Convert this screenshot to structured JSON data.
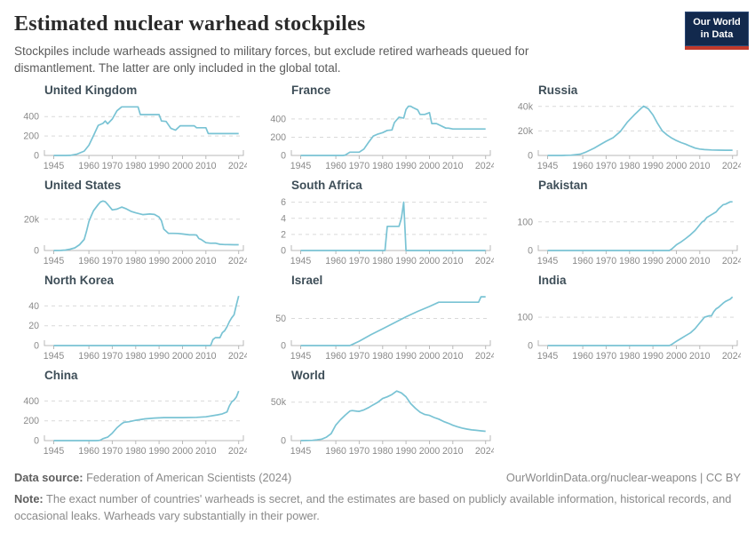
{
  "header": {
    "title": "Estimated nuclear warhead stockpiles",
    "subtitle": "Stockpiles include warheads assigned to military forces, but exclude retired warheads queued for dismantlement. The latter are only included in the global total.",
    "logo": {
      "line1": "Our World",
      "line2": "in Data"
    }
  },
  "colors": {
    "line": "#79c3d4",
    "grid": "#d9d9d9",
    "axis": "#b9b9b9",
    "tick_text": "#8a8a8a",
    "panel_title": "#3e4e58",
    "logo_bg": "#12294d",
    "logo_red": "#c0392b"
  },
  "axis": {
    "xlim": [
      1941,
      2026
    ],
    "xticks": [
      1945,
      1960,
      1970,
      1980,
      1990,
      2000,
      2010,
      2024
    ],
    "xtick_labels": [
      "1945",
      "1960",
      "1970",
      "1980",
      "1990",
      "2000",
      "2010",
      "2024"
    ]
  },
  "chart_data": [
    {
      "type": "line",
      "title": "United Kingdom",
      "ylim": [
        0,
        530
      ],
      "yticks": [
        0,
        200,
        400
      ],
      "ytick_labels": [
        "0",
        "200",
        "400"
      ],
      "x": [
        1945,
        1950,
        1952,
        1955,
        1958,
        1960,
        1962,
        1964,
        1966,
        1967,
        1968,
        1970,
        1972,
        1974,
        1981,
        1982,
        1990,
        1991,
        1993,
        1995,
        1997,
        1999,
        2001,
        2005,
        2006,
        2010,
        2011,
        2015,
        2024
      ],
      "y": [
        0,
        0,
        1,
        15,
        45,
        105,
        205,
        310,
        330,
        355,
        325,
        375,
        460,
        500,
        500,
        420,
        420,
        355,
        350,
        280,
        260,
        305,
        305,
        305,
        285,
        285,
        225,
        225,
        225
      ]
    },
    {
      "type": "line",
      "title": "France",
      "ylim": [
        0,
        565
      ],
      "yticks": [
        0,
        200,
        400
      ],
      "ytick_labels": [
        "0",
        "200",
        "400"
      ],
      "x": [
        1945,
        1963,
        1964,
        1966,
        1970,
        1972,
        1974,
        1976,
        1978,
        1980,
        1982,
        1984,
        1985,
        1987,
        1989,
        1990,
        1991,
        1992,
        1993,
        1995,
        1996,
        1998,
        2000,
        2001,
        2003,
        2007,
        2008,
        2010,
        2015,
        2020,
        2024
      ],
      "y": [
        0,
        0,
        4,
        36,
        36,
        70,
        145,
        212,
        235,
        250,
        275,
        280,
        360,
        420,
        410,
        505,
        540,
        540,
        525,
        500,
        450,
        450,
        470,
        350,
        350,
        300,
        300,
        290,
        290,
        290,
        290
      ]
    },
    {
      "type": "line",
      "title": "Russia",
      "ylim": [
        0,
        42000
      ],
      "yticks": [
        0,
        20000,
        40000
      ],
      "ytick_labels": [
        "0",
        "20k",
        "40k"
      ],
      "x": [
        1945,
        1949,
        1951,
        1953,
        1955,
        1957,
        1959,
        1961,
        1963,
        1965,
        1967,
        1970,
        1973,
        1976,
        1979,
        1982,
        1985,
        1986,
        1988,
        1990,
        1992,
        1994,
        1996,
        1998,
        2000,
        2002,
        2004,
        2006,
        2008,
        2010,
        2012,
        2015,
        2018,
        2021,
        2024
      ],
      "y": [
        0,
        1,
        25,
        120,
        200,
        660,
        1100,
        2450,
        4300,
        6100,
        8300,
        11600,
        14500,
        19400,
        27000,
        33000,
        38500,
        40200,
        38000,
        33000,
        26000,
        20000,
        16800,
        14200,
        12200,
        10500,
        9200,
        7500,
        6000,
        5200,
        4750,
        4500,
        4350,
        4300,
        4300
      ]
    },
    {
      "type": "line",
      "title": "United States",
      "ylim": [
        0,
        33000
      ],
      "yticks": [
        0,
        20000
      ],
      "ytick_labels": [
        "0",
        "20k"
      ],
      "x": [
        1945,
        1948,
        1950,
        1952,
        1954,
        1956,
        1958,
        1959,
        1960,
        1961,
        1962,
        1964,
        1965,
        1966,
        1967,
        1968,
        1970,
        1972,
        1974,
        1976,
        1978,
        1980,
        1983,
        1986,
        1988,
        1990,
        1991,
        1992,
        1994,
        1996,
        1998,
        2000,
        2003,
        2005,
        2006,
        2007,
        2008,
        2010,
        2012,
        2014,
        2016,
        2018,
        2020,
        2022,
        2024
      ],
      "y": [
        2,
        50,
        300,
        840,
        1700,
        3700,
        7100,
        12300,
        18600,
        22200,
        25500,
        29500,
        31100,
        31700,
        31250,
        29600,
        26000,
        26500,
        27800,
        26700,
        25100,
        24100,
        23000,
        23400,
        23100,
        21400,
        19000,
        13700,
        11000,
        11000,
        10900,
        10600,
        10000,
        10000,
        9900,
        7700,
        7000,
        5000,
        4650,
        4700,
        4000,
        3800,
        3750,
        3700,
        3700
      ]
    },
    {
      "type": "line",
      "title": "South Africa",
      "ylim": [
        0,
        6.4
      ],
      "yticks": [
        0,
        2,
        4,
        6
      ],
      "ytick_labels": [
        "0",
        "2",
        "4",
        "6"
      ],
      "x": [
        1945,
        1981,
        1982,
        1986,
        1987,
        1988,
        1989,
        1990,
        2000,
        2010,
        2024
      ],
      "y": [
        0,
        0,
        3,
        3,
        3,
        4,
        6,
        0,
        0,
        0,
        0
      ]
    },
    {
      "type": "line",
      "title": "Pakistan",
      "ylim": [
        0,
        180
      ],
      "yticks": [
        0,
        100
      ],
      "ytick_labels": [
        "0",
        "100"
      ],
      "x": [
        1945,
        1997,
        1998,
        2000,
        2002,
        2004,
        2006,
        2008,
        2010,
        2011,
        2012,
        2013,
        2015,
        2017,
        2018,
        2020,
        2021,
        2023,
        2024
      ],
      "y": [
        0,
        0,
        5,
        20,
        30,
        42,
        55,
        70,
        90,
        100,
        105,
        115,
        125,
        135,
        145,
        160,
        162,
        170,
        170
      ]
    },
    {
      "type": "line",
      "title": "North Korea",
      "ylim": [
        0,
        52
      ],
      "yticks": [
        0,
        20,
        40
      ],
      "ytick_labels": [
        "0",
        "20",
        "40"
      ],
      "x": [
        1945,
        2012,
        2013,
        2014,
        2016,
        2017,
        2018,
        2019,
        2020,
        2021,
        2022,
        2023,
        2024
      ],
      "y": [
        0,
        0,
        6,
        8,
        8,
        13,
        15,
        19,
        24,
        28,
        31,
        41,
        50
      ]
    },
    {
      "type": "line",
      "title": "Israel",
      "ylim": [
        0,
        95
      ],
      "yticks": [
        0,
        50
      ],
      "ytick_labels": [
        "0",
        "50"
      ],
      "x": [
        1945,
        1966,
        1967,
        1970,
        1975,
        1980,
        1985,
        1990,
        1995,
        2000,
        2004,
        2010,
        2015,
        2021,
        2022,
        2024
      ],
      "y": [
        0,
        0,
        2,
        8,
        20,
        31,
        42,
        53,
        63,
        72,
        80,
        80,
        80,
        80,
        90,
        90
      ]
    },
    {
      "type": "line",
      "title": "India",
      "ylim": [
        0,
        182
      ],
      "yticks": [
        0,
        100
      ],
      "ytick_labels": [
        "0",
        "100"
      ],
      "x": [
        1945,
        1997,
        1998,
        2000,
        2002,
        2004,
        2006,
        2008,
        2010,
        2011,
        2012,
        2014,
        2015,
        2016,
        2017,
        2018,
        2020,
        2021,
        2022,
        2023,
        2024
      ],
      "y": [
        0,
        0,
        4,
        15,
        25,
        35,
        45,
        60,
        80,
        90,
        100,
        105,
        105,
        120,
        130,
        135,
        150,
        156,
        160,
        164,
        172
      ]
    },
    {
      "type": "line",
      "title": "China",
      "ylim": [
        0,
        520
      ],
      "yticks": [
        0,
        200,
        400
      ],
      "ytick_labels": [
        "0",
        "200",
        "400"
      ],
      "x": [
        1945,
        1963,
        1964,
        1965,
        1966,
        1968,
        1970,
        1972,
        1974,
        1975,
        1977,
        1980,
        1984,
        1988,
        1992,
        2000,
        2006,
        2010,
        2015,
        2017,
        2019,
        2020,
        2021,
        2022,
        2023,
        2024
      ],
      "y": [
        0,
        0,
        1,
        5,
        20,
        35,
        75,
        130,
        170,
        185,
        190,
        205,
        220,
        228,
        232,
        232,
        235,
        240,
        260,
        270,
        290,
        350,
        390,
        410,
        440,
        500
      ]
    },
    {
      "type": "line",
      "title": "World",
      "ylim": [
        0,
        67000
      ],
      "yticks": [
        0,
        50000
      ],
      "ytick_labels": [
        "0",
        "50k"
      ],
      "x": [
        1945,
        1950,
        1952,
        1954,
        1956,
        1958,
        1960,
        1962,
        1964,
        1966,
        1967,
        1969,
        1970,
        1972,
        1974,
        1976,
        1978,
        1980,
        1982,
        1984,
        1986,
        1988,
        1990,
        1992,
        1994,
        1996,
        1998,
        2000,
        2002,
        2004,
        2006,
        2008,
        2010,
        2012,
        2014,
        2016,
        2018,
        2020,
        2022,
        2024
      ],
      "y": [
        2,
        300,
        1000,
        2000,
        4500,
        9000,
        20300,
        27100,
        33000,
        38500,
        39000,
        38200,
        38000,
        40000,
        43000,
        46500,
        50000,
        54700,
        57000,
        60000,
        64500,
        62000,
        57000,
        48000,
        42000,
        37000,
        34000,
        32800,
        30000,
        28000,
        25000,
        22600,
        20000,
        18000,
        16300,
        15000,
        14000,
        13400,
        12700,
        12100
      ]
    }
  ],
  "footer": {
    "datasource_label": "Data source:",
    "datasource_value": " Federation of American Scientists (2024)",
    "credit": "OurWorldinData.org/nuclear-weapons | CC BY",
    "note_label": "Note:",
    "note_text": " The exact number of countries' warheads is secret, and the estimates are based on publicly available information, historical records, and occasional leaks. Warheads vary substantially in their power."
  }
}
